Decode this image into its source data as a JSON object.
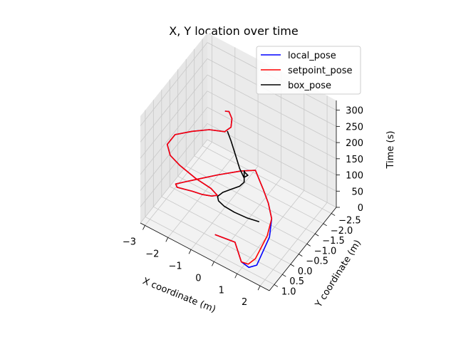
{
  "chart_data": {
    "type": "line",
    "projection": "3d",
    "title": "X, Y location over time",
    "xlabel": "X coordinate (m)",
    "ylabel": "Y coordinate (m)",
    "zlabel": "Time (s)",
    "xlim": [
      -3.2,
      2.4
    ],
    "ylim": [
      -2.8,
      1.3
    ],
    "zlim": [
      0,
      330
    ],
    "xticks": [
      "−3",
      "−2",
      "−1",
      "0",
      "1",
      "2"
    ],
    "xtick_values": [
      -3,
      -2,
      -1,
      0,
      1,
      2
    ],
    "yticks": [
      "−2.5",
      "−2.0",
      "−1.5",
      "−1.0",
      "−0.5",
      "0.0",
      "0.5",
      "1.0"
    ],
    "ytick_values": [
      -2.5,
      -2.0,
      -1.5,
      -1.0,
      -0.5,
      0.0,
      0.5,
      1.0
    ],
    "zticks": [
      "0",
      "50",
      "100",
      "150",
      "200",
      "250",
      "300"
    ],
    "ztick_values": [
      0,
      50,
      100,
      150,
      200,
      250,
      300
    ],
    "grid": true,
    "legend_position": "top-right",
    "series": [
      {
        "name": "local_pose",
        "color": "#0000ff",
        "points": [
          [
            -0.6,
            0.4,
            5
          ],
          [
            0.2,
            0.3,
            5
          ],
          [
            0.9,
            0.9,
            8
          ],
          [
            1.3,
            1.0,
            12
          ],
          [
            1.5,
            0.8,
            14
          ],
          [
            1.2,
            -0.4,
            14
          ],
          [
            0.8,
            -1.1,
            12
          ],
          [
            0.3,
            -1.6,
            10
          ],
          [
            -0.2,
            -2.0,
            8
          ],
          [
            -0.6,
            -2.3,
            6
          ],
          [
            -0.9,
            -2.5,
            10
          ],
          [
            -1.3,
            -2.2,
            12
          ],
          [
            -1.9,
            -1.6,
            15
          ],
          [
            -2.4,
            -1.0,
            20
          ],
          [
            -2.7,
            -0.6,
            25
          ],
          [
            -2.8,
            -0.3,
            35
          ],
          [
            -2.6,
            -0.1,
            45
          ],
          [
            -2.2,
            0.0,
            60
          ],
          [
            -1.8,
            0.1,
            75
          ],
          [
            -1.3,
            0.2,
            90
          ],
          [
            -0.8,
            0.3,
            110
          ],
          [
            -0.5,
            0.4,
            130
          ],
          [
            -0.7,
            0.5,
            150
          ],
          [
            -1.3,
            0.6,
            165
          ],
          [
            -2.0,
            0.6,
            180
          ],
          [
            -2.4,
            0.6,
            195
          ],
          [
            -2.6,
            0.5,
            215
          ],
          [
            -2.4,
            0.3,
            240
          ],
          [
            -1.8,
            0.1,
            260
          ],
          [
            -1.2,
            -0.1,
            275
          ],
          [
            -0.6,
            -0.2,
            285
          ],
          [
            -0.4,
            -0.3,
            300
          ],
          [
            -0.5,
            -0.5,
            310
          ],
          [
            -0.7,
            -0.6,
            318
          ],
          [
            -0.8,
            -0.5,
            322
          ]
        ]
      },
      {
        "name": "setpoint_pose",
        "color": "#ff0000",
        "points": [
          [
            -0.6,
            0.4,
            5
          ],
          [
            0.2,
            0.3,
            5
          ],
          [
            0.9,
            0.9,
            8
          ],
          [
            1.2,
            0.9,
            12
          ],
          [
            1.3,
            0.6,
            14
          ],
          [
            1.1,
            -0.4,
            14
          ],
          [
            0.8,
            -1.1,
            12
          ],
          [
            0.3,
            -1.6,
            10
          ],
          [
            -0.2,
            -2.0,
            8
          ],
          [
            -0.6,
            -2.3,
            6
          ],
          [
            -0.9,
            -2.5,
            10
          ],
          [
            -1.3,
            -2.2,
            12
          ],
          [
            -1.9,
            -1.6,
            15
          ],
          [
            -2.4,
            -1.0,
            20
          ],
          [
            -2.7,
            -0.6,
            25
          ],
          [
            -2.8,
            -0.3,
            35
          ],
          [
            -2.6,
            -0.1,
            45
          ],
          [
            -2.2,
            0.0,
            60
          ],
          [
            -1.8,
            0.1,
            75
          ],
          [
            -1.3,
            0.2,
            90
          ],
          [
            -0.8,
            0.3,
            110
          ],
          [
            -0.5,
            0.4,
            130
          ],
          [
            -0.7,
            0.5,
            150
          ],
          [
            -1.3,
            0.6,
            165
          ],
          [
            -2.0,
            0.6,
            180
          ],
          [
            -2.4,
            0.6,
            195
          ],
          [
            -2.6,
            0.5,
            215
          ],
          [
            -2.4,
            0.3,
            240
          ],
          [
            -1.8,
            0.1,
            260
          ],
          [
            -1.2,
            -0.1,
            275
          ],
          [
            -0.6,
            -0.2,
            285
          ],
          [
            -0.4,
            -0.3,
            300
          ],
          [
            -0.5,
            -0.5,
            310
          ],
          [
            -0.7,
            -0.6,
            318
          ],
          [
            -0.8,
            -0.5,
            322
          ]
        ]
      },
      {
        "name": "box_pose",
        "color": "#000000",
        "points": [
          [
            0.4,
            -0.9,
            0
          ],
          [
            0.0,
            -0.7,
            10
          ],
          [
            -0.4,
            -0.5,
            25
          ],
          [
            -0.7,
            -0.3,
            45
          ],
          [
            -0.8,
            -0.1,
            70
          ],
          [
            -0.7,
            0.1,
            100
          ],
          [
            -0.4,
            0.2,
            130
          ],
          [
            0.0,
            0.3,
            160
          ],
          [
            0.4,
            0.3,
            185
          ],
          [
            0.6,
            0.3,
            205
          ],
          [
            0.6,
            0.3,
            240
          ],
          [
            0.7,
            0.4,
            245
          ],
          [
            0.9,
            0.5,
            250
          ],
          [
            0.8,
            0.6,
            246
          ],
          [
            0.4,
            0.3,
            240
          ],
          [
            0.0,
            0.0,
            250
          ],
          [
            -0.4,
            -0.3,
            258
          ],
          [
            -0.7,
            -0.5,
            264
          ]
        ]
      }
    ]
  }
}
